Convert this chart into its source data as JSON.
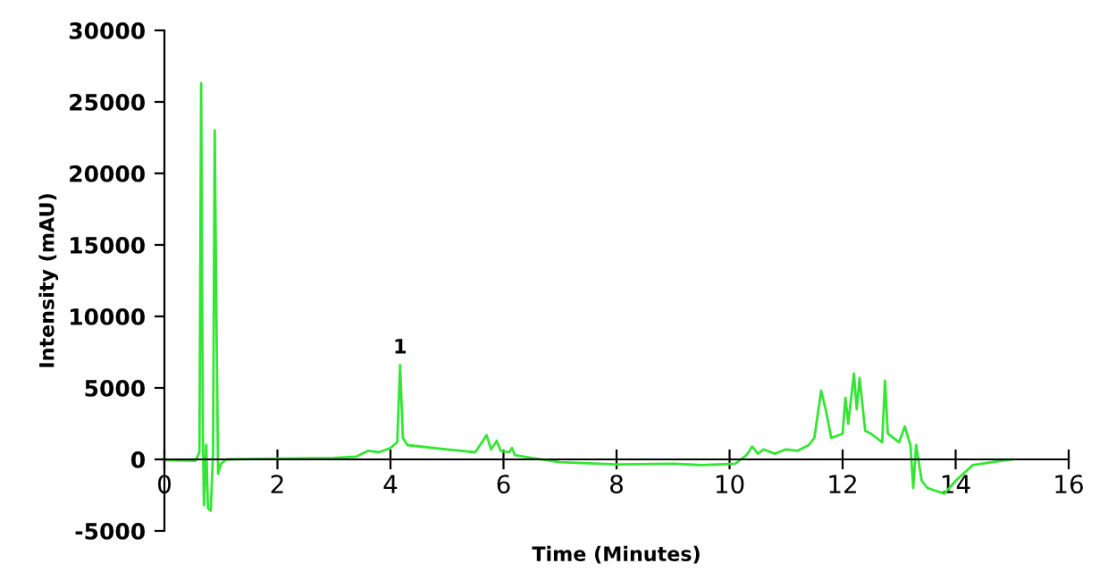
{
  "chart_data": {
    "type": "line",
    "xlabel": "Time (Minutes)",
    "ylabel": "Intensity (mAU)",
    "xlim": [
      0,
      16
    ],
    "ylim": [
      -5000,
      30000
    ],
    "xticks": [
      0,
      2,
      4,
      6,
      8,
      10,
      12,
      14,
      16
    ],
    "yticks": [
      -5000,
      0,
      5000,
      10000,
      15000,
      20000,
      25000,
      30000
    ],
    "grid": false,
    "legend": false,
    "annotations": [
      {
        "text": "1",
        "x": 4.17,
        "y": 6600
      }
    ],
    "series": [
      {
        "color": "#33e633",
        "x": [
          0,
          0.55,
          0.62,
          0.65,
          0.68,
          0.7,
          0.74,
          0.77,
          0.82,
          0.86,
          0.89,
          0.92,
          0.95,
          1.0,
          1.1,
          2,
          3,
          3.4,
          3.6,
          3.8,
          4.0,
          4.12,
          4.17,
          4.22,
          4.3,
          5.0,
          5.5,
          5.62,
          5.7,
          5.78,
          5.88,
          5.95,
          6.1,
          6.15,
          6.2,
          6.5,
          7,
          8,
          9,
          9.5,
          10.1,
          10.3,
          10.4,
          10.5,
          10.6,
          10.8,
          11,
          11.2,
          11.4,
          11.5,
          11.62,
          11.7,
          11.8,
          12.0,
          12.05,
          12.1,
          12.2,
          12.25,
          12.3,
          12.4,
          12.5,
          12.6,
          12.7,
          12.75,
          12.8,
          13.0,
          13.1,
          13.2,
          13.25,
          13.3,
          13.4,
          13.5,
          13.8,
          14.0,
          14.3,
          14.8,
          15.0
        ],
        "values": [
          -50,
          -100,
          500,
          26300,
          2000,
          -3200,
          1000,
          -3400,
          -3600,
          500,
          23000,
          10000,
          -1000,
          -300,
          0,
          50,
          100,
          200,
          600,
          500,
          800,
          1200,
          6600,
          1500,
          1000,
          700,
          500,
          1200,
          1700,
          700,
          1300,
          600,
          500,
          800,
          300,
          100,
          -200,
          -350,
          -300,
          -400,
          -300,
          300,
          900,
          400,
          700,
          400,
          700,
          600,
          1000,
          1500,
          4800,
          3500,
          1500,
          1800,
          4300,
          2500,
          6000,
          3500,
          5700,
          2000,
          1800,
          1500,
          1200,
          5500,
          1800,
          1200,
          2300,
          1000,
          -2000,
          1000,
          -1500,
          -2000,
          -2400,
          -1500,
          -400,
          -100,
          0
        ]
      }
    ]
  }
}
